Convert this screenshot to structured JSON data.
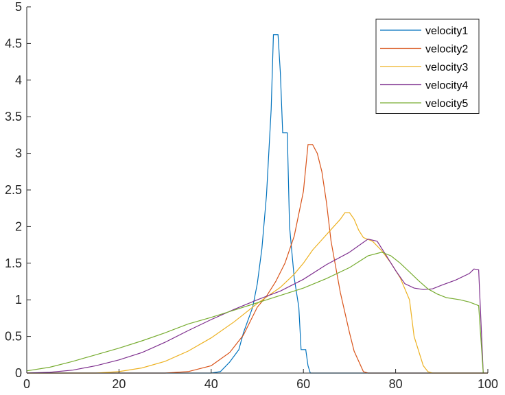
{
  "chart_data": {
    "type": "line",
    "title": "",
    "xlabel": "",
    "ylabel": "",
    "xlim": [
      0,
      100
    ],
    "ylim": [
      0,
      5
    ],
    "x_ticks": [
      0,
      20,
      40,
      60,
      80,
      100
    ],
    "y_ticks": [
      0,
      0.5,
      1,
      1.5,
      2,
      2.5,
      3,
      3.5,
      4,
      4.5,
      5
    ],
    "x_tick_labels": [
      "0",
      "20",
      "40",
      "60",
      "80",
      "100"
    ],
    "y_tick_labels": [
      "0",
      "0.5",
      "1",
      "1.5",
      "2",
      "2.5",
      "3",
      "3.5",
      "4",
      "4.5",
      "5"
    ],
    "grid": false,
    "legend_position": "top-right",
    "series": [
      {
        "name": "velocity1",
        "color": "#0072BD",
        "points": [
          [
            0,
            0
          ],
          [
            40,
            0
          ],
          [
            42,
            0.02
          ],
          [
            44,
            0.15
          ],
          [
            46,
            0.32
          ],
          [
            47,
            0.55
          ],
          [
            49,
            0.9
          ],
          [
            50,
            1.22
          ],
          [
            51,
            1.7
          ],
          [
            52,
            2.43
          ],
          [
            53,
            3.6
          ],
          [
            53.5,
            4.62
          ],
          [
            54.5,
            4.62
          ],
          [
            55,
            4.1
          ],
          [
            55.5,
            3.28
          ],
          [
            56.5,
            3.28
          ],
          [
            57,
            2.0
          ],
          [
            58,
            1.3
          ],
          [
            59,
            0.9
          ],
          [
            59.5,
            0.32
          ],
          [
            60.5,
            0.32
          ],
          [
            61,
            0.1
          ],
          [
            61.5,
            0
          ],
          [
            100,
            0
          ]
        ]
      },
      {
        "name": "velocity2",
        "color": "#D95319",
        "points": [
          [
            0,
            0
          ],
          [
            30,
            0
          ],
          [
            35,
            0.02
          ],
          [
            40,
            0.1
          ],
          [
            44,
            0.28
          ],
          [
            47,
            0.52
          ],
          [
            50,
            0.9
          ],
          [
            52,
            1.05
          ],
          [
            54,
            1.25
          ],
          [
            56,
            1.5
          ],
          [
            58,
            1.87
          ],
          [
            60,
            2.48
          ],
          [
            61,
            3.12
          ],
          [
            62,
            3.12
          ],
          [
            63,
            3.0
          ],
          [
            64,
            2.75
          ],
          [
            65,
            2.33
          ],
          [
            66,
            1.8
          ],
          [
            68,
            1.1
          ],
          [
            70,
            0.55
          ],
          [
            71,
            0.3
          ],
          [
            73,
            0.02
          ],
          [
            74,
            0
          ],
          [
            100,
            0
          ]
        ]
      },
      {
        "name": "velocity3",
        "color": "#EDB120",
        "points": [
          [
            0,
            0
          ],
          [
            15,
            0
          ],
          [
            20,
            0.02
          ],
          [
            25,
            0.07
          ],
          [
            30,
            0.16
          ],
          [
            35,
            0.3
          ],
          [
            40,
            0.48
          ],
          [
            45,
            0.7
          ],
          [
            50,
            0.95
          ],
          [
            55,
            1.17
          ],
          [
            58,
            1.35
          ],
          [
            60,
            1.5
          ],
          [
            62,
            1.68
          ],
          [
            64,
            1.82
          ],
          [
            66,
            1.96
          ],
          [
            68,
            2.1
          ],
          [
            69,
            2.19
          ],
          [
            70,
            2.19
          ],
          [
            71,
            2.1
          ],
          [
            72,
            1.95
          ],
          [
            73,
            1.85
          ],
          [
            75,
            1.8
          ],
          [
            77,
            1.67
          ],
          [
            79,
            1.5
          ],
          [
            81,
            1.3
          ],
          [
            83,
            1.0
          ],
          [
            84,
            0.5
          ],
          [
            86,
            0.1
          ],
          [
            87,
            0.02
          ],
          [
            88,
            0
          ],
          [
            100,
            0
          ]
        ]
      },
      {
        "name": "velocity4",
        "color": "#7E2F8E",
        "points": [
          [
            0,
            0
          ],
          [
            5,
            0.01
          ],
          [
            10,
            0.04
          ],
          [
            15,
            0.1
          ],
          [
            20,
            0.18
          ],
          [
            25,
            0.28
          ],
          [
            30,
            0.42
          ],
          [
            35,
            0.58
          ],
          [
            40,
            0.73
          ],
          [
            45,
            0.87
          ],
          [
            50,
            1.0
          ],
          [
            55,
            1.12
          ],
          [
            60,
            1.28
          ],
          [
            65,
            1.48
          ],
          [
            70,
            1.65
          ],
          [
            74,
            1.83
          ],
          [
            76,
            1.8
          ],
          [
            78,
            1.6
          ],
          [
            80,
            1.4
          ],
          [
            82,
            1.22
          ],
          [
            84,
            1.16
          ],
          [
            86,
            1.14
          ],
          [
            88,
            1.15
          ],
          [
            90,
            1.2
          ],
          [
            93,
            1.27
          ],
          [
            96,
            1.36
          ],
          [
            97,
            1.42
          ],
          [
            98,
            1.41
          ],
          [
            99,
            0
          ]
        ]
      },
      {
        "name": "velocity5",
        "color": "#77AC30",
        "points": [
          [
            0,
            0.03
          ],
          [
            5,
            0.08
          ],
          [
            10,
            0.16
          ],
          [
            15,
            0.25
          ],
          [
            20,
            0.34
          ],
          [
            25,
            0.44
          ],
          [
            30,
            0.55
          ],
          [
            35,
            0.67
          ],
          [
            40,
            0.76
          ],
          [
            45,
            0.86
          ],
          [
            50,
            0.96
          ],
          [
            55,
            1.06
          ],
          [
            60,
            1.16
          ],
          [
            65,
            1.29
          ],
          [
            70,
            1.44
          ],
          [
            74,
            1.6
          ],
          [
            77,
            1.65
          ],
          [
            79,
            1.6
          ],
          [
            81,
            1.5
          ],
          [
            83,
            1.38
          ],
          [
            85,
            1.26
          ],
          [
            87,
            1.15
          ],
          [
            89,
            1.08
          ],
          [
            91,
            1.03
          ],
          [
            94,
            1.0
          ],
          [
            96,
            0.97
          ],
          [
            98,
            0.92
          ],
          [
            99,
            0
          ]
        ]
      }
    ]
  }
}
